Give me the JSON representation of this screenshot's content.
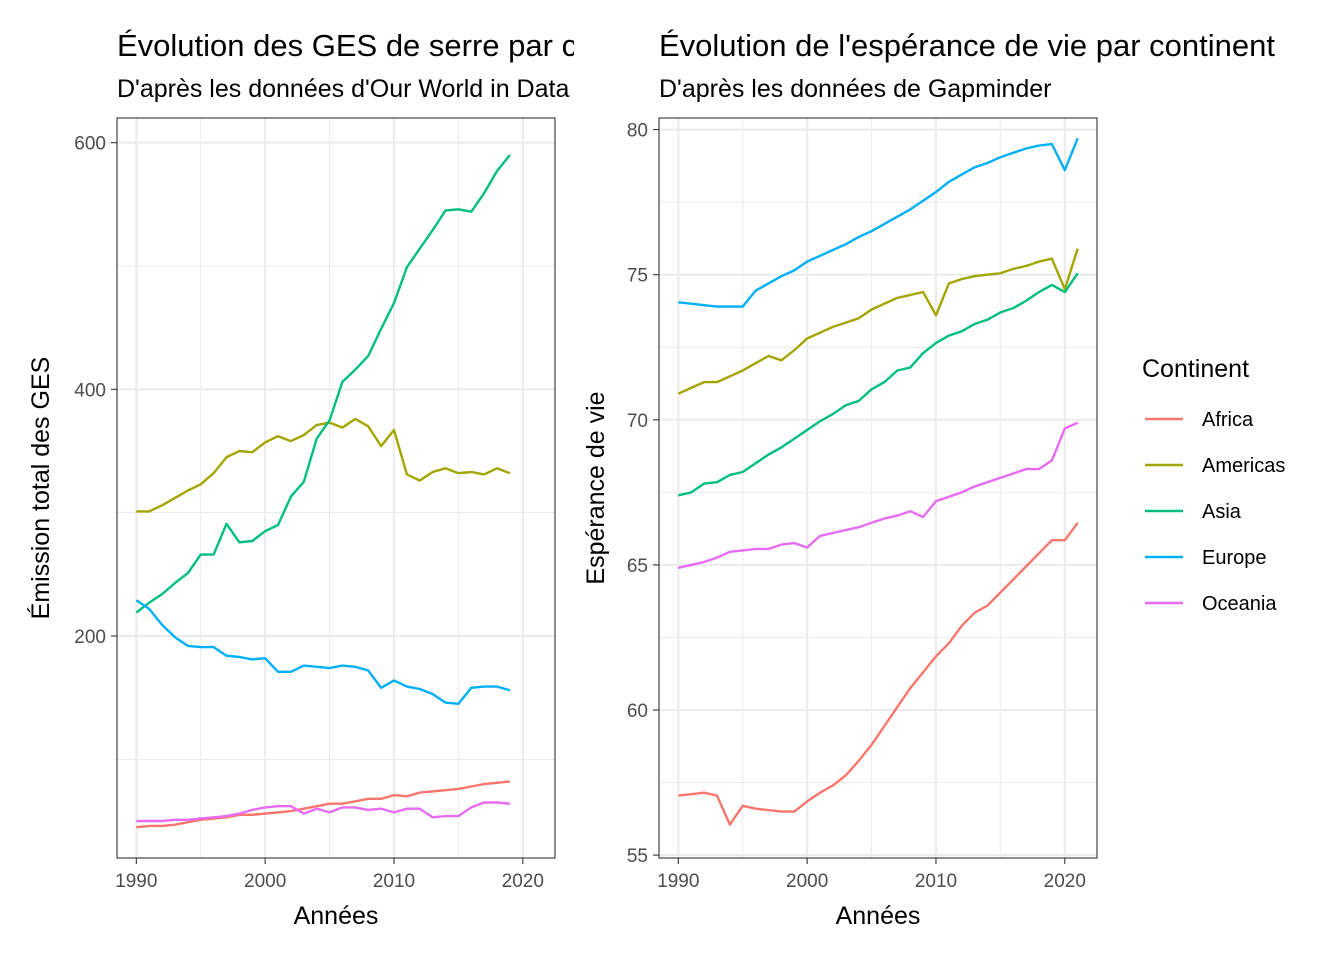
{
  "charts": {
    "left": {
      "title": "Évolution des GES de serre par continent",
      "subtitle": "D'après les données d'Our World in Data",
      "xlabel": "Années",
      "ylabel": "Émission total des GES"
    },
    "right": {
      "title": "Évolution de l'espérance de vie par continent",
      "subtitle": "D'après les données de Gapminder",
      "xlabel": "Années",
      "ylabel": "Espérance de vie"
    }
  },
  "legend": {
    "title": "Continent",
    "items": [
      {
        "name": "Africa",
        "color": "#F8766D"
      },
      {
        "name": "Americas",
        "color": "#A3A500"
      },
      {
        "name": "Asia",
        "color": "#00BF7D"
      },
      {
        "name": "Europe",
        "color": "#00B0F6"
      },
      {
        "name": "Oceania",
        "color": "#E76BF3"
      }
    ]
  },
  "chart_data": [
    {
      "type": "line",
      "title": "Évolution des GES de serre par continent",
      "subtitle": "D'après les données d'Our World in Data",
      "xlabel": "Années",
      "ylabel": "Émission total des GES",
      "xlim": [
        1988.5,
        2022.5
      ],
      "ylim": [
        20,
        620
      ],
      "xticks": [
        1990,
        2000,
        2010,
        2020
      ],
      "yticks": [
        200,
        400,
        600
      ],
      "grid": true,
      "x": [
        1990,
        1991,
        1992,
        1993,
        1994,
        1995,
        1996,
        1997,
        1998,
        1999,
        2000,
        2001,
        2002,
        2003,
        2004,
        2005,
        2006,
        2007,
        2008,
        2009,
        2010,
        2011,
        2012,
        2013,
        2014,
        2015,
        2016,
        2017,
        2018,
        2019
      ],
      "series": [
        {
          "name": "Africa",
          "values": [
            45,
            46,
            46,
            47,
            49,
            51,
            52,
            53,
            55,
            55,
            56,
            57,
            58,
            60,
            62,
            64,
            64,
            66,
            68,
            68,
            71,
            70,
            73,
            74,
            75,
            76,
            78,
            80,
            81,
            82
          ]
        },
        {
          "name": "Americas",
          "values": [
            301,
            301,
            306,
            312,
            318,
            323,
            332,
            345,
            350,
            349,
            357,
            362,
            358,
            363,
            371,
            373,
            369,
            376,
            370,
            354,
            367,
            331,
            326,
            333,
            336,
            332,
            333,
            331,
            336,
            332
          ]
        },
        {
          "name": "Asia",
          "values": [
            219,
            227,
            234,
            243,
            251,
            266,
            266,
            291,
            276,
            277,
            285,
            290,
            313,
            325,
            360,
            375,
            406,
            416,
            427,
            449,
            470,
            499,
            514,
            529,
            545,
            546,
            544,
            559,
            577,
            590
          ]
        },
        {
          "name": "Europe",
          "values": [
            229,
            222,
            209,
            199,
            192,
            191,
            191,
            184,
            183,
            181,
            182,
            171,
            171,
            176,
            175,
            174,
            176,
            175,
            172,
            158,
            164,
            159,
            157,
            153,
            146,
            145,
            158,
            159,
            159,
            156
          ]
        },
        {
          "name": "Oceania",
          "values": [
            50,
            50,
            50,
            51,
            51,
            52,
            53,
            54,
            56,
            59,
            61,
            62,
            62,
            56,
            60,
            57,
            61,
            61,
            59,
            60,
            57,
            60,
            60,
            53,
            54,
            54,
            61,
            65,
            65,
            64
          ]
        }
      ]
    },
    {
      "type": "line",
      "title": "Évolution de l'espérance de vie par continent",
      "subtitle": "D'après les données de Gapminder",
      "xlabel": "Années",
      "ylabel": "Espérance de vie",
      "xlim": [
        1988.5,
        2022.5
      ],
      "ylim": [
        54.9,
        80.4
      ],
      "xticks": [
        1990,
        2000,
        2010,
        2020
      ],
      "yticks": [
        55,
        60,
        65,
        70,
        75,
        80
      ],
      "grid": true,
      "legend_position": "right",
      "x": [
        1990,
        1991,
        1992,
        1993,
        1994,
        1995,
        1996,
        1997,
        1998,
        1999,
        2000,
        2001,
        2002,
        2003,
        2004,
        2005,
        2006,
        2007,
        2008,
        2009,
        2010,
        2011,
        2012,
        2013,
        2014,
        2015,
        2016,
        2017,
        2018,
        2019,
        2020,
        2021
      ],
      "series": [
        {
          "name": "Africa",
          "values": [
            57.05,
            57.1,
            57.15,
            57.05,
            56.05,
            56.7,
            56.6,
            56.55,
            56.5,
            56.5,
            56.85,
            57.15,
            57.4,
            57.75,
            58.25,
            58.8,
            59.45,
            60.1,
            60.75,
            61.3,
            61.85,
            62.3,
            62.9,
            63.35,
            63.6,
            64.05,
            64.5,
            64.95,
            65.4,
            65.85,
            65.85,
            66.45
          ]
        },
        {
          "name": "Americas",
          "values": [
            70.9,
            71.1,
            71.3,
            71.3,
            71.5,
            71.7,
            71.95,
            72.2,
            72.05,
            72.4,
            72.8,
            73.0,
            73.2,
            73.35,
            73.5,
            73.8,
            74.0,
            74.2,
            74.3,
            74.4,
            73.6,
            74.7,
            74.85,
            74.95,
            75.0,
            75.05,
            75.2,
            75.3,
            75.45,
            75.55,
            74.5,
            75.9
          ]
        },
        {
          "name": "Asia",
          "values": [
            67.4,
            67.5,
            67.8,
            67.85,
            68.1,
            68.2,
            68.5,
            68.8,
            69.05,
            69.35,
            69.65,
            69.95,
            70.2,
            70.5,
            70.65,
            71.05,
            71.3,
            71.7,
            71.8,
            72.3,
            72.65,
            72.9,
            73.05,
            73.3,
            73.45,
            73.7,
            73.85,
            74.1,
            74.4,
            74.65,
            74.4,
            75.05
          ]
        },
        {
          "name": "Europe",
          "values": [
            74.05,
            74.0,
            73.95,
            73.9,
            73.9,
            73.9,
            74.45,
            74.7,
            74.95,
            75.15,
            75.45,
            75.65,
            75.85,
            76.05,
            76.3,
            76.5,
            76.75,
            77.0,
            77.25,
            77.55,
            77.85,
            78.2,
            78.45,
            78.7,
            78.85,
            79.05,
            79.2,
            79.35,
            79.45,
            79.5,
            78.6,
            79.7
          ]
        },
        {
          "name": "Oceania",
          "values": [
            64.9,
            65.0,
            65.1,
            65.25,
            65.45,
            65.5,
            65.55,
            65.55,
            65.7,
            65.75,
            65.6,
            66.0,
            66.1,
            66.2,
            66.3,
            66.45,
            66.6,
            66.7,
            66.85,
            66.65,
            67.2,
            67.35,
            67.5,
            67.7,
            67.85,
            68.0,
            68.15,
            68.3,
            68.3,
            68.6,
            69.7,
            69.9
          ]
        }
      ]
    }
  ]
}
